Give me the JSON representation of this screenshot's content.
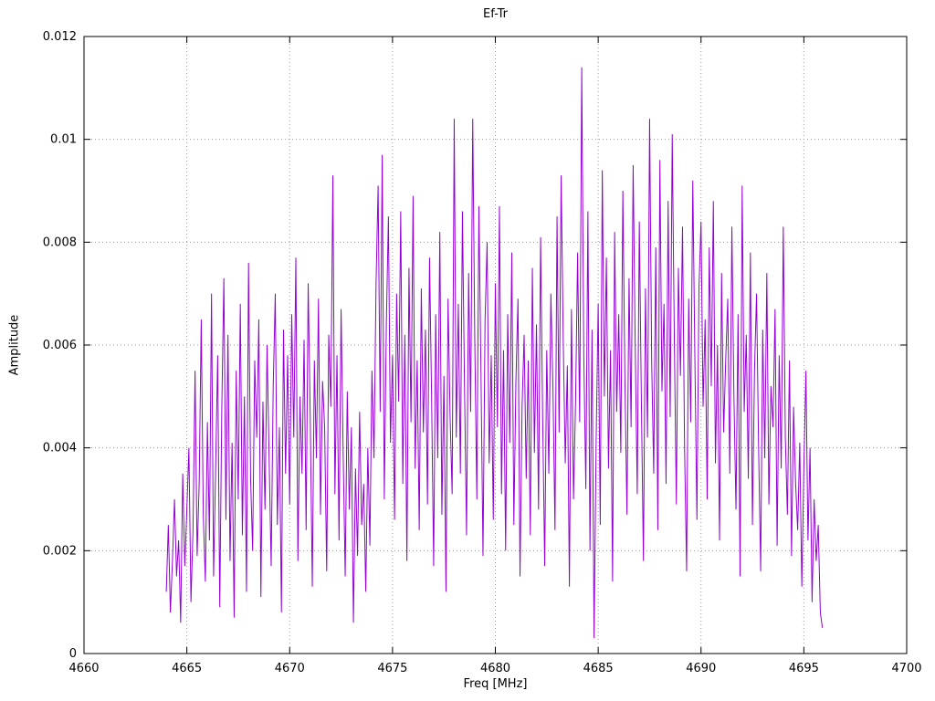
{
  "page": {
    "background": "#ffffff"
  },
  "chart_data": {
    "type": "line",
    "title": "Ef-Tr",
    "xlabel": "Freq [MHz]",
    "ylabel": "Amplitude",
    "xlim": [
      4660,
      4700
    ],
    "ylim": [
      0,
      0.012
    ],
    "x_ticks": [
      4660,
      4665,
      4670,
      4675,
      4680,
      4685,
      4690,
      4695,
      4700
    ],
    "x_tick_labels": [
      "4660",
      "4665",
      "4670",
      "4675",
      "4680",
      "4685",
      "4690",
      "4695",
      "4700"
    ],
    "y_ticks": [
      0,
      0.002,
      0.004,
      0.006,
      0.008,
      0.01,
      0.012
    ],
    "y_tick_labels": [
      "0",
      "0.002",
      "0.004",
      "0.006",
      "0.008",
      "0.01",
      "0.012"
    ],
    "grid": "dotted",
    "grid_color": "#9a9a9a",
    "border_color": "#000000",
    "line_color": "#9400D3",
    "legend": "none",
    "series": [
      {
        "name": "Ef-Tr",
        "x_start": 4664.0,
        "x_step": 0.1,
        "amplitude_scale": 0.0001,
        "values": [
          12,
          25,
          8,
          18,
          30,
          15,
          22,
          6,
          35,
          17,
          28,
          40,
          10,
          24,
          55,
          19,
          33,
          65,
          27,
          14,
          45,
          22,
          70,
          15,
          36,
          58,
          9,
          48,
          73,
          26,
          62,
          18,
          41,
          7,
          55,
          30,
          68,
          23,
          50,
          12,
          76,
          34,
          20,
          57,
          42,
          65,
          11,
          49,
          28,
          60,
          38,
          17,
          52,
          70,
          25,
          44,
          8,
          63,
          35,
          58,
          29,
          66,
          42,
          77,
          18,
          50,
          35,
          61,
          24,
          72,
          46,
          13,
          57,
          38,
          69,
          27,
          53,
          44,
          16,
          62,
          48,
          93,
          31,
          58,
          22,
          67,
          39,
          15,
          51,
          28,
          44,
          6,
          36,
          19,
          47,
          25,
          33,
          12,
          40,
          21,
          55,
          38,
          72,
          91,
          47,
          97,
          30,
          64,
          85,
          41,
          58,
          26,
          70,
          49,
          86,
          33,
          62,
          18,
          75,
          45,
          89,
          36,
          57,
          24,
          71,
          43,
          63,
          29,
          77,
          50,
          17,
          66,
          38,
          82,
          27,
          54,
          12,
          69,
          46,
          31,
          104,
          42,
          68,
          35,
          86,
          52,
          23,
          74,
          47,
          104,
          61,
          30,
          87,
          55,
          19,
          65,
          80,
          37,
          58,
          26,
          72,
          44,
          87,
          31,
          59,
          20,
          66,
          41,
          78,
          25,
          53,
          69,
          15,
          48,
          62,
          34,
          57,
          23,
          75,
          39,
          64,
          28,
          81,
          46,
          17,
          59,
          35,
          70,
          52,
          24,
          85,
          43,
          93,
          61,
          37,
          56,
          13,
          67,
          30,
          49,
          78,
          45,
          114,
          58,
          32,
          86,
          20,
          63,
          3,
          41,
          68,
          25,
          94,
          50,
          77,
          36,
          59,
          14,
          82,
          47,
          66,
          39,
          90,
          53,
          27,
          73,
          44,
          95,
          60,
          31,
          84,
          49,
          18,
          71,
          42,
          104,
          57,
          35,
          79,
          24,
          96,
          51,
          68,
          33,
          88,
          46,
          101,
          62,
          29,
          75,
          54,
          83,
          40,
          16,
          69,
          45,
          92,
          58,
          26,
          71,
          84,
          48,
          65,
          30,
          79,
          52,
          88,
          37,
          60,
          22,
          74,
          43,
          57,
          69,
          35,
          83,
          50,
          28,
          66,
          15,
          91,
          47,
          62,
          34,
          78,
          25,
          55,
          70,
          40,
          16,
          63,
          38,
          74,
          29,
          52,
          44,
          67,
          21,
          58,
          36,
          83,
          42,
          27,
          57,
          19,
          48,
          33,
          24,
          41,
          13,
          36,
          55,
          22,
          40,
          10,
          30,
          18,
          25,
          8,
          5
        ]
      }
    ]
  }
}
